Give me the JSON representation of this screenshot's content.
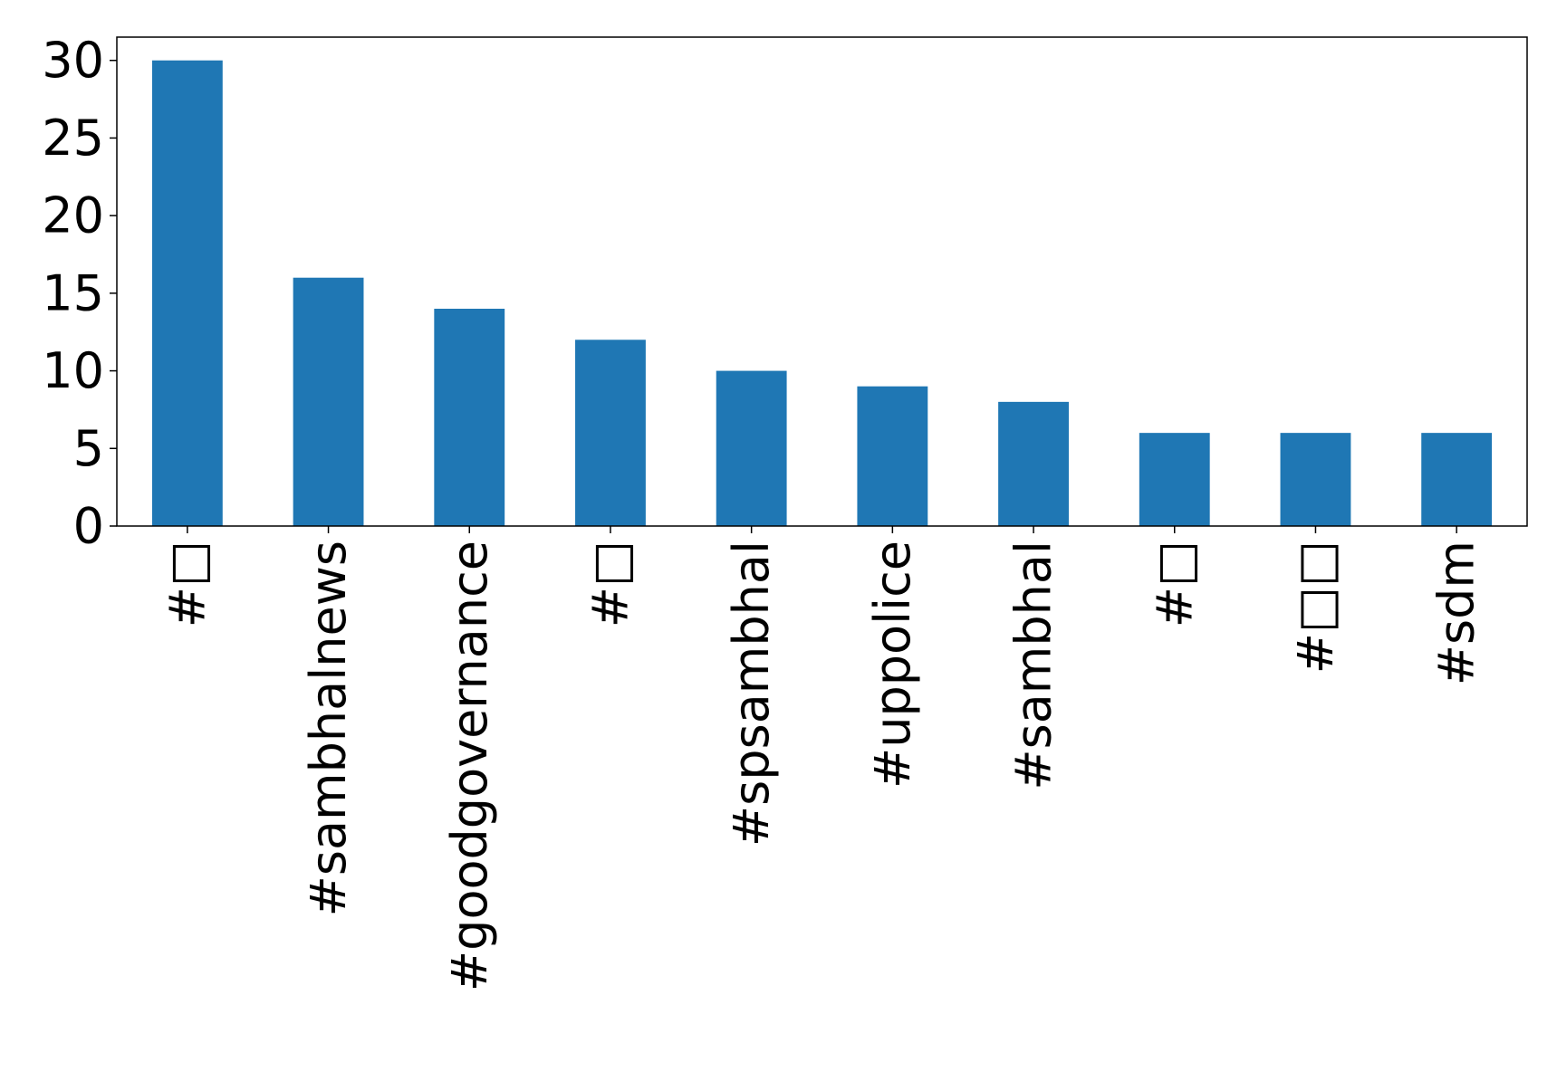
{
  "chart_data": {
    "type": "bar",
    "categories": [
      "#□",
      "#sambhalnews",
      "#goodgovernance",
      "#□",
      "#spsambhal",
      "#uppolice",
      "#sambhal",
      "#□",
      "#□□",
      "#sdm"
    ],
    "values": [
      30,
      16,
      14,
      12,
      10,
      9,
      8,
      6,
      6,
      6
    ],
    "title": "",
    "xlabel": "",
    "ylabel": "",
    "ylim": [
      0,
      31.5
    ],
    "yticks": [
      0,
      5,
      10,
      15,
      20,
      25,
      30
    ],
    "grid": false,
    "bar_color": "#1f77b4"
  }
}
